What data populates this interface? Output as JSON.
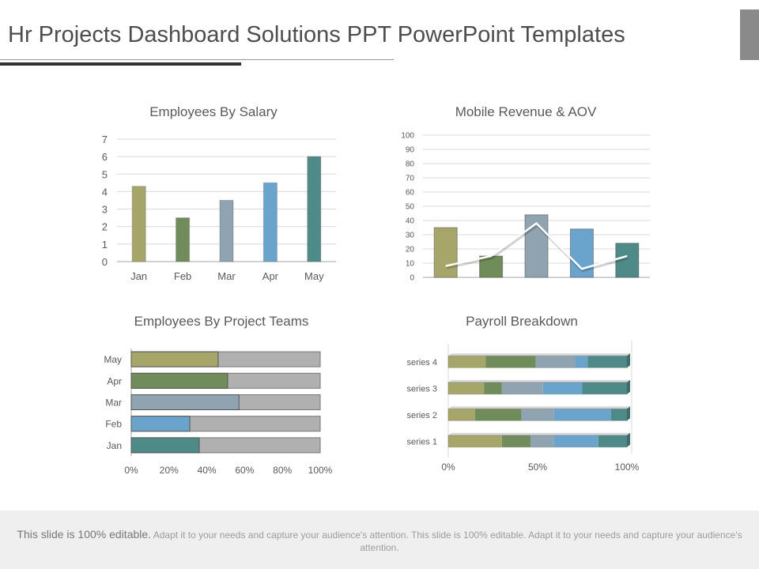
{
  "slide": {
    "title": "Hr Projects Dashboard Solutions PPT PowerPoint Templates",
    "footer_lead": "This slide is 100% editable.",
    "footer_body": "Adapt it to your needs and capture your audience's attention. This slide is 100% editable. Adapt it to your needs and capture your audience's attention."
  },
  "colors": {
    "olive": "#a6a66a",
    "green": "#708c5a",
    "slate": "#8fa4b0",
    "blue": "#6aa4cc",
    "teal": "#4d8a88",
    "track": "#b0b0b0",
    "line": "#ffffff",
    "grid": "#d9d9d9",
    "axis": "#a6a6a6"
  },
  "chart_data": [
    {
      "type": "bar",
      "title": "Employees By Salary",
      "categories": [
        "Jan",
        "Feb",
        "Mar",
        "Apr",
        "May"
      ],
      "values": [
        4.3,
        2.5,
        3.5,
        4.5,
        6.0
      ],
      "bar_colors": [
        "olive",
        "green",
        "slate",
        "blue",
        "teal"
      ],
      "ylim": [
        0,
        7
      ],
      "yticks": [
        "0",
        "1",
        "2",
        "3",
        "4",
        "5",
        "6",
        "7"
      ],
      "grid": true
    },
    {
      "type": "bar",
      "title": "Mobile Revenue & AOV",
      "values": [
        35,
        15,
        44,
        34,
        24
      ],
      "line_values": [
        8,
        15,
        38,
        6,
        15
      ],
      "bar_colors": [
        "olive",
        "green",
        "slate",
        "blue",
        "teal"
      ],
      "ylim": [
        0,
        100
      ],
      "yticks": [
        "0",
        "10",
        "20",
        "30",
        "40",
        "50",
        "60",
        "70",
        "80",
        "90",
        "100"
      ],
      "grid": true
    },
    {
      "type": "bar",
      "orientation": "horizontal",
      "stacked": "percent",
      "title": "Employees By Project Teams",
      "categories": [
        "Jan",
        "Feb",
        "Mar",
        "Apr",
        "May"
      ],
      "values": [
        36,
        31,
        57,
        51,
        46
      ],
      "bar_colors": [
        "teal",
        "blue",
        "slate",
        "green",
        "olive"
      ],
      "xticks": [
        "0%",
        "20%",
        "40%",
        "60%",
        "80%",
        "100%"
      ],
      "xlim": [
        0,
        100
      ]
    },
    {
      "type": "bar",
      "orientation": "horizontal",
      "stacked": "percent",
      "title": "Payroll Breakdown",
      "categories": [
        "series 1",
        "series 2",
        "series 3",
        "series 4"
      ],
      "segment_colors": [
        "olive",
        "green",
        "slate",
        "blue",
        "teal"
      ],
      "rows": [
        [
          30,
          16,
          13,
          25,
          16
        ],
        [
          15,
          26,
          18,
          32,
          9
        ],
        [
          20,
          10,
          23,
          22,
          25
        ],
        [
          21,
          28,
          22,
          7,
          22
        ]
      ],
      "xticks": [
        "0%",
        "50%",
        "100%"
      ],
      "xlim": [
        0,
        100
      ]
    }
  ]
}
